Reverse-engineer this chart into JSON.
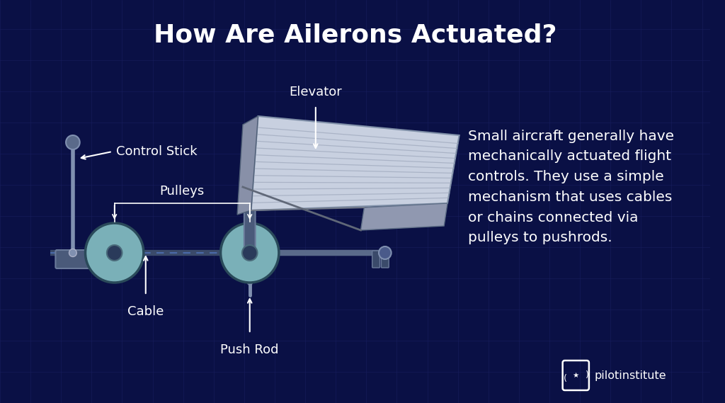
{
  "title": "How Are Ailerons Actuated?",
  "title_color": "#FFFFFF",
  "title_fontsize": 26,
  "bg_color": "#0a1045",
  "grid_color": "#1a2060",
  "body_text": "Small aircraft generally have\nmechanically actuated flight\ncontrols. They use a simple\nmechanism that uses cables\nor chains connected via\npulleys to pushrods.",
  "body_text_color": "#FFFFFF",
  "body_fontsize": 14.5,
  "label_color": "#FFFFFF",
  "label_fontsize": 13,
  "pulley_color": "#7ab0b8",
  "pulley_edge": "#2a4a5a",
  "pulley_hub": "#2a3a5a",
  "stick_color": "#8090b0",
  "stick_base": "#4a5a7a",
  "rod_bar": "#3a4a6a",
  "cable_dash": "#4a6aaa",
  "wing_main": "#c8d0e0",
  "wing_edge": "#8090a8",
  "wing_stripe": "#a0aabe",
  "wing_fold": "#8890a8",
  "wing_fold_edge": "#506078",
  "aileron_face": "#9098b0",
  "aileron_edge": "#607088",
  "connector_face": "#4a5a7a",
  "connector_edge": "#6a7a9a",
  "logo_color": "#FFFFFF",
  "logo_text": "pilotinstitute"
}
